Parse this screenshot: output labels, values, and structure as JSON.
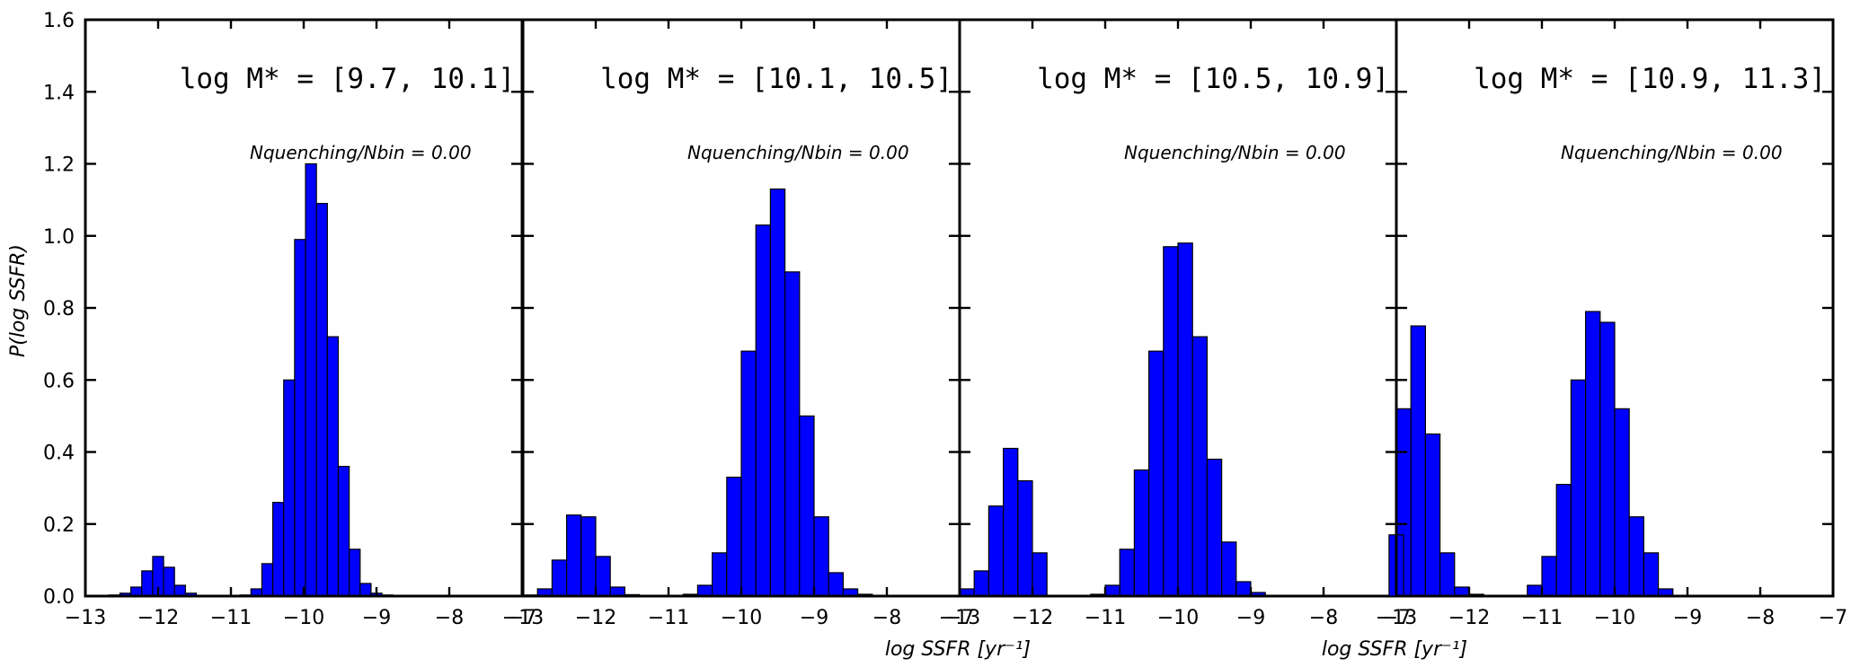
{
  "chart_data": [
    {
      "type": "bar",
      "panel": 1,
      "title": "log M* = [9.7, 10.1]",
      "annotation": "Nquenching/Nbin = 0.00",
      "ylabel": "P(log SSFR)",
      "xlabel": "",
      "xlim": [
        -13,
        -7
      ],
      "ylim": [
        0,
        1.6
      ],
      "xticks": [
        "−13",
        "−12",
        "−11",
        "−10",
        "−9",
        "−8",
        "−7"
      ],
      "yticks": [
        "0.0",
        "0.2",
        "0.4",
        "0.6",
        "0.8",
        "1.0",
        "1.2",
        "1.4",
        "1.6"
      ],
      "bin_width": 0.15,
      "x": [
        -12.6,
        -12.45,
        -12.3,
        -12.15,
        -12.0,
        -11.85,
        -11.7,
        -11.55,
        -11.4,
        -10.8,
        -10.65,
        -10.5,
        -10.35,
        -10.2,
        -10.05,
        -9.9,
        -9.75,
        -9.6,
        -9.45,
        -9.3,
        -9.15,
        -9.0,
        -8.85,
        -8.7
      ],
      "values": [
        0.003,
        0.008,
        0.025,
        0.07,
        0.11,
        0.08,
        0.03,
        0.008,
        0.002,
        0.003,
        0.02,
        0.09,
        0.26,
        0.6,
        0.99,
        1.2,
        1.09,
        0.72,
        0.36,
        0.13,
        0.035,
        0.008,
        0.003,
        0.001
      ]
    },
    {
      "type": "bar",
      "panel": 2,
      "title": "log M* = [10.1, 10.5]",
      "annotation": "Nquenching/Nbin = 0.00",
      "ylabel": "",
      "xlabel": "log SSFR [yr⁻¹]",
      "xlim": [
        -13,
        -7
      ],
      "ylim": [
        0,
        1.6
      ],
      "xticks": [
        "−13",
        "−12",
        "−11",
        "−10",
        "−9",
        "−8",
        "−7"
      ],
      "bin_width": 0.2,
      "x": [
        -12.9,
        -12.7,
        -12.5,
        -12.3,
        -12.1,
        -11.9,
        -11.7,
        -11.5,
        -10.7,
        -10.5,
        -10.3,
        -10.1,
        -9.9,
        -9.7,
        -9.5,
        -9.3,
        -9.1,
        -8.9,
        -8.7
      ],
      "values": [
        0.003,
        0.02,
        0.1,
        0.225,
        0.22,
        0.11,
        0.025,
        0.004,
        0.005,
        0.03,
        0.12,
        0.33,
        0.68,
        1.03,
        1.13,
        0.9,
        0.5,
        0.22,
        0.065
      ],
      "extra_x": [
        -8.5,
        -8.3
      ],
      "extra_values": [
        0.02,
        0.005
      ]
    },
    {
      "type": "bar",
      "panel": 3,
      "title": "log M* = [10.5, 10.9]",
      "annotation": "Nquenching/Nbin = 0.00",
      "ylabel": "",
      "xlabel": "log SSFR [yr⁻¹]",
      "xlim": [
        -13,
        -7
      ],
      "ylim": [
        0,
        1.6
      ],
      "xticks": [
        "−13",
        "−12",
        "−11",
        "−10",
        "−9",
        "−8",
        "−7"
      ],
      "bin_width": 0.2,
      "x": [
        -12.9,
        -12.7,
        -12.5,
        -12.3,
        -12.1,
        -11.9,
        -11.1,
        -10.9,
        -10.7,
        -10.5,
        -10.3,
        -10.1,
        -9.9,
        -9.7,
        -9.5,
        -9.3,
        -9.1,
        -8.9
      ],
      "values": [
        0.02,
        0.07,
        0.25,
        0.41,
        0.32,
        0.12,
        0.005,
        0.03,
        0.13,
        0.35,
        0.68,
        0.97,
        0.98,
        0.72,
        0.38,
        0.15,
        0.04,
        0.01
      ]
    },
    {
      "type": "bar",
      "panel": 4,
      "title": "log M* = [10.9, 11.3]",
      "annotation": "Nquenching/Nbin = 0.00",
      "ylabel": "",
      "xlabel": "",
      "xlim": [
        -13,
        -7
      ],
      "ylim": [
        0,
        1.6
      ],
      "xticks": [
        "−13",
        "−12",
        "−11",
        "−10",
        "−9",
        "−8",
        "−7"
      ],
      "bin_width": 0.2,
      "x": [
        -12.9,
        -12.7,
        -12.5,
        -12.3,
        -12.1,
        -11.9,
        -11.1,
        -10.9,
        -10.7,
        -10.5,
        -10.3,
        -10.1,
        -9.9,
        -9.7,
        -9.5,
        -9.3
      ],
      "values": [
        0.52,
        0.75,
        0.45,
        0.12,
        0.025,
        0.005,
        0.03,
        0.11,
        0.31,
        0.6,
        0.79,
        0.76,
        0.52,
        0.22,
        0.12,
        0.02
      ],
      "extra_x": [
        -13.0
      ],
      "extra_values": [
        0.17
      ]
    }
  ]
}
